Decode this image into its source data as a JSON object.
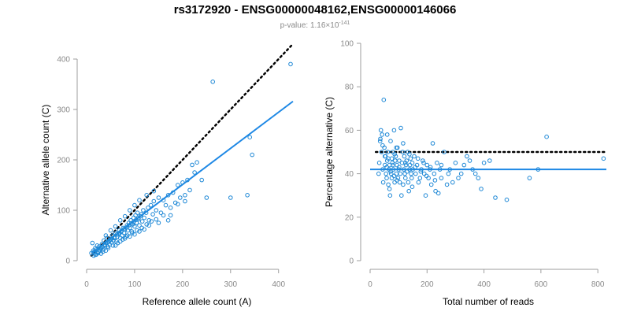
{
  "title": "rs3172920 - ENSG00000048162,ENSG00000146066",
  "subtitle": {
    "prefix": "p-value: 1.16",
    "times": "×",
    "base": "10",
    "exponent": "-141"
  },
  "colors": {
    "points": "#1e88d6",
    "fit_line": "#1e88e5",
    "reference_line": "#000000",
    "axis": "#9e9e9e"
  },
  "chart_data": [
    {
      "id": "left",
      "type": "scatter",
      "xlabel": "Reference allele count (A)",
      "ylabel": "Alternative allele count (C)",
      "xlim": [
        0,
        430
      ],
      "ylim": [
        0,
        400
      ],
      "xticks": [
        0,
        100,
        200,
        300,
        400
      ],
      "yticks": [
        0,
        100,
        200,
        300,
        400
      ],
      "reference_line": {
        "style": "dotted",
        "from": [
          10,
          10
        ],
        "to": [
          430,
          430
        ]
      },
      "fit_line": {
        "from": [
          10,
          15
        ],
        "to": [
          430,
          316
        ]
      },
      "points": [
        [
          10,
          15
        ],
        [
          12,
          35
        ],
        [
          14,
          20
        ],
        [
          16,
          18
        ],
        [
          18,
          25
        ],
        [
          20,
          22
        ],
        [
          22,
          30
        ],
        [
          24,
          15
        ],
        [
          26,
          28
        ],
        [
          28,
          20
        ],
        [
          30,
          25
        ],
        [
          32,
          33
        ],
        [
          34,
          18
        ],
        [
          36,
          40
        ],
        [
          38,
          30
        ],
        [
          40,
          35
        ],
        [
          42,
          45
        ],
        [
          44,
          28
        ],
        [
          46,
          38
        ],
        [
          48,
          32
        ],
        [
          50,
          42
        ],
        [
          52,
          36
        ],
        [
          54,
          50
        ],
        [
          56,
          40
        ],
        [
          58,
          45
        ],
        [
          60,
          55
        ],
        [
          62,
          38
        ],
        [
          64,
          48
        ],
        [
          66,
          52
        ],
        [
          68,
          60
        ],
        [
          70,
          45
        ],
        [
          72,
          58
        ],
        [
          74,
          50
        ],
        [
          76,
          65
        ],
        [
          78,
          55
        ],
        [
          80,
          62
        ],
        [
          82,
          48
        ],
        [
          84,
          70
        ],
        [
          86,
          60
        ],
        [
          88,
          75
        ],
        [
          90,
          65
        ],
        [
          92,
          80
        ],
        [
          94,
          58
        ],
        [
          96,
          72
        ],
        [
          98,
          85
        ],
        [
          100,
          68
        ],
        [
          102,
          90
        ],
        [
          104,
          75
        ],
        [
          106,
          95
        ],
        [
          108,
          82
        ],
        [
          110,
          70
        ],
        [
          112,
          88
        ],
        [
          114,
          92
        ],
        [
          116,
          78
        ],
        [
          118,
          100
        ],
        [
          120,
          85
        ],
        [
          124,
          95
        ],
        [
          128,
          105
        ],
        [
          130,
          80
        ],
        [
          134,
          110
        ],
        [
          138,
          92
        ],
        [
          140,
          118
        ],
        [
          145,
          100
        ],
        [
          150,
          125
        ],
        [
          155,
          95
        ],
        [
          160,
          120
        ],
        [
          165,
          110
        ],
        [
          170,
          130
        ],
        [
          175,
          90
        ],
        [
          180,
          135
        ],
        [
          185,
          115
        ],
        [
          190,
          150
        ],
        [
          195,
          125
        ],
        [
          200,
          155
        ],
        [
          205,
          130
        ],
        [
          210,
          160
        ],
        [
          215,
          140
        ],
        [
          220,
          190
        ],
        [
          225,
          175
        ],
        [
          230,
          195
        ],
        [
          240,
          160
        ],
        [
          250,
          125
        ],
        [
          263,
          355
        ],
        [
          300,
          125
        ],
        [
          335,
          130
        ],
        [
          340,
          245
        ],
        [
          345,
          210
        ],
        [
          425,
          390
        ],
        [
          20,
          12
        ],
        [
          25,
          18
        ],
        [
          30,
          14
        ],
        [
          35,
          22
        ],
        [
          40,
          20
        ],
        [
          45,
          25
        ],
        [
          55,
          30
        ],
        [
          65,
          35
        ],
        [
          75,
          42
        ],
        [
          85,
          50
        ],
        [
          95,
          55
        ],
        [
          105,
          60
        ],
        [
          115,
          65
        ],
        [
          125,
          72
        ],
        [
          135,
          78
        ],
        [
          145,
          82
        ],
        [
          160,
          90
        ],
        [
          175,
          105
        ],
        [
          190,
          112
        ],
        [
          205,
          118
        ],
        [
          60,
          30
        ],
        [
          70,
          38
        ],
        [
          80,
          44
        ],
        [
          90,
          48
        ],
        [
          100,
          52
        ],
        [
          110,
          58
        ],
        [
          120,
          62
        ],
        [
          130,
          70
        ],
        [
          150,
          75
        ],
        [
          170,
          80
        ],
        [
          40,
          50
        ],
        [
          50,
          60
        ],
        [
          60,
          68
        ],
        [
          70,
          80
        ],
        [
          80,
          88
        ],
        [
          90,
          100
        ],
        [
          100,
          110
        ],
        [
          110,
          120
        ],
        [
          125,
          130
        ],
        [
          140,
          138
        ],
        [
          15,
          10
        ],
        [
          18,
          12
        ],
        [
          22,
          16
        ],
        [
          28,
          24
        ],
        [
          33,
          27
        ],
        [
          38,
          32
        ],
        [
          43,
          36
        ],
        [
          48,
          40
        ],
        [
          53,
          44
        ],
        [
          58,
          47
        ],
        [
          63,
          52
        ],
        [
          68,
          55
        ],
        [
          73,
          59
        ],
        [
          78,
          63
        ],
        [
          83,
          66
        ],
        [
          88,
          70
        ],
        [
          93,
          74
        ],
        [
          98,
          77
        ],
        [
          103,
          81
        ],
        [
          108,
          85
        ]
      ]
    },
    {
      "id": "right",
      "type": "scatter",
      "xlabel": "Total number of reads",
      "ylabel": "Percentage alternative (C)",
      "xlim": [
        0,
        830
      ],
      "ylim": [
        0,
        100
      ],
      "xticks": [
        0,
        200,
        400,
        600,
        800
      ],
      "yticks": [
        0,
        20,
        40,
        60,
        80,
        100
      ],
      "reference_line": {
        "style": "dotted",
        "from": [
          20,
          50
        ],
        "to": [
          830,
          50
        ]
      },
      "fit_line": {
        "from": [
          0,
          42
        ],
        "to": [
          830,
          42
        ]
      },
      "points": [
        [
          30,
          40
        ],
        [
          32,
          45
        ],
        [
          35,
          55
        ],
        [
          38,
          60
        ],
        [
          40,
          50
        ],
        [
          42,
          58
        ],
        [
          44,
          42
        ],
        [
          46,
          36
        ],
        [
          48,
          74
        ],
        [
          50,
          52
        ],
        [
          52,
          44
        ],
        [
          54,
          48
        ],
        [
          56,
          40
        ],
        [
          58,
          38
        ],
        [
          60,
          46
        ],
        [
          62,
          50
        ],
        [
          64,
          35
        ],
        [
          66,
          42
        ],
        [
          68,
          44
        ],
        [
          70,
          30
        ],
        [
          72,
          55
        ],
        [
          74,
          40
        ],
        [
          76,
          38
        ],
        [
          78,
          45
        ],
        [
          80,
          50
        ],
        [
          82,
          42
        ],
        [
          84,
          60
        ],
        [
          86,
          36
        ],
        [
          88,
          46
        ],
        [
          90,
          48
        ],
        [
          92,
          40
        ],
        [
          94,
          44
        ],
        [
          96,
          52
        ],
        [
          98,
          38
        ],
        [
          100,
          42
        ],
        [
          102,
          46
        ],
        [
          104,
          36
        ],
        [
          106,
          40
        ],
        [
          108,
          61
        ],
        [
          110,
          30
        ],
        [
          112,
          45
        ],
        [
          114,
          50
        ],
        [
          116,
          35
        ],
        [
          118,
          42
        ],
        [
          120,
          48
        ],
        [
          122,
          40
        ],
        [
          124,
          38
        ],
        [
          126,
          44
        ],
        [
          128,
          46
        ],
        [
          130,
          41
        ],
        [
          132,
          50
        ],
        [
          134,
          36
        ],
        [
          136,
          32
        ],
        [
          138,
          42
        ],
        [
          140,
          44
        ],
        [
          142,
          47
        ],
        [
          144,
          40
        ],
        [
          146,
          38
        ],
        [
          148,
          45
        ],
        [
          150,
          42
        ],
        [
          155,
          48
        ],
        [
          160,
          40
        ],
        [
          165,
          44
        ],
        [
          170,
          36
        ],
        [
          175,
          38
        ],
        [
          180,
          42
        ],
        [
          185,
          46
        ],
        [
          190,
          40
        ],
        [
          195,
          30
        ],
        [
          200,
          44
        ],
        [
          205,
          38
        ],
        [
          210,
          42
        ],
        [
          215,
          35
        ],
        [
          220,
          54
        ],
        [
          225,
          40
        ],
        [
          230,
          32
        ],
        [
          235,
          45
        ],
        [
          240,
          31
        ],
        [
          245,
          42
        ],
        [
          250,
          38
        ],
        [
          260,
          50
        ],
        [
          270,
          35
        ],
        [
          280,
          42
        ],
        [
          290,
          36
        ],
        [
          300,
          45
        ],
        [
          310,
          38
        ],
        [
          320,
          40
        ],
        [
          330,
          44
        ],
        [
          340,
          48
        ],
        [
          350,
          46
        ],
        [
          360,
          42
        ],
        [
          370,
          40
        ],
        [
          380,
          38
        ],
        [
          390,
          33
        ],
        [
          400,
          45
        ],
        [
          420,
          46
        ],
        [
          440,
          29
        ],
        [
          480,
          28
        ],
        [
          560,
          38
        ],
        [
          590,
          42
        ],
        [
          620,
          57
        ],
        [
          820,
          47
        ],
        [
          36,
          56
        ],
        [
          44,
          53
        ],
        [
          52,
          48
        ],
        [
          60,
          58
        ],
        [
          68,
          33
        ],
        [
          76,
          47
        ],
        [
          84,
          39
        ],
        [
          92,
          52
        ],
        [
          58,
          43
        ],
        [
          64,
          47
        ],
        [
          72,
          41
        ],
        [
          80,
          44
        ],
        [
          86,
          49
        ],
        [
          94,
          37
        ],
        [
          102,
          43
        ],
        [
          116,
          54
        ],
        [
          124,
          45
        ],
        [
          138,
          49
        ],
        [
          148,
          34
        ],
        [
          158,
          43
        ],
        [
          168,
          47
        ],
        [
          178,
          41
        ],
        [
          188,
          45
        ],
        [
          198,
          39
        ],
        [
          212,
          43
        ],
        [
          228,
          37
        ],
        [
          250,
          44
        ],
        [
          275,
          40
        ]
      ]
    }
  ]
}
